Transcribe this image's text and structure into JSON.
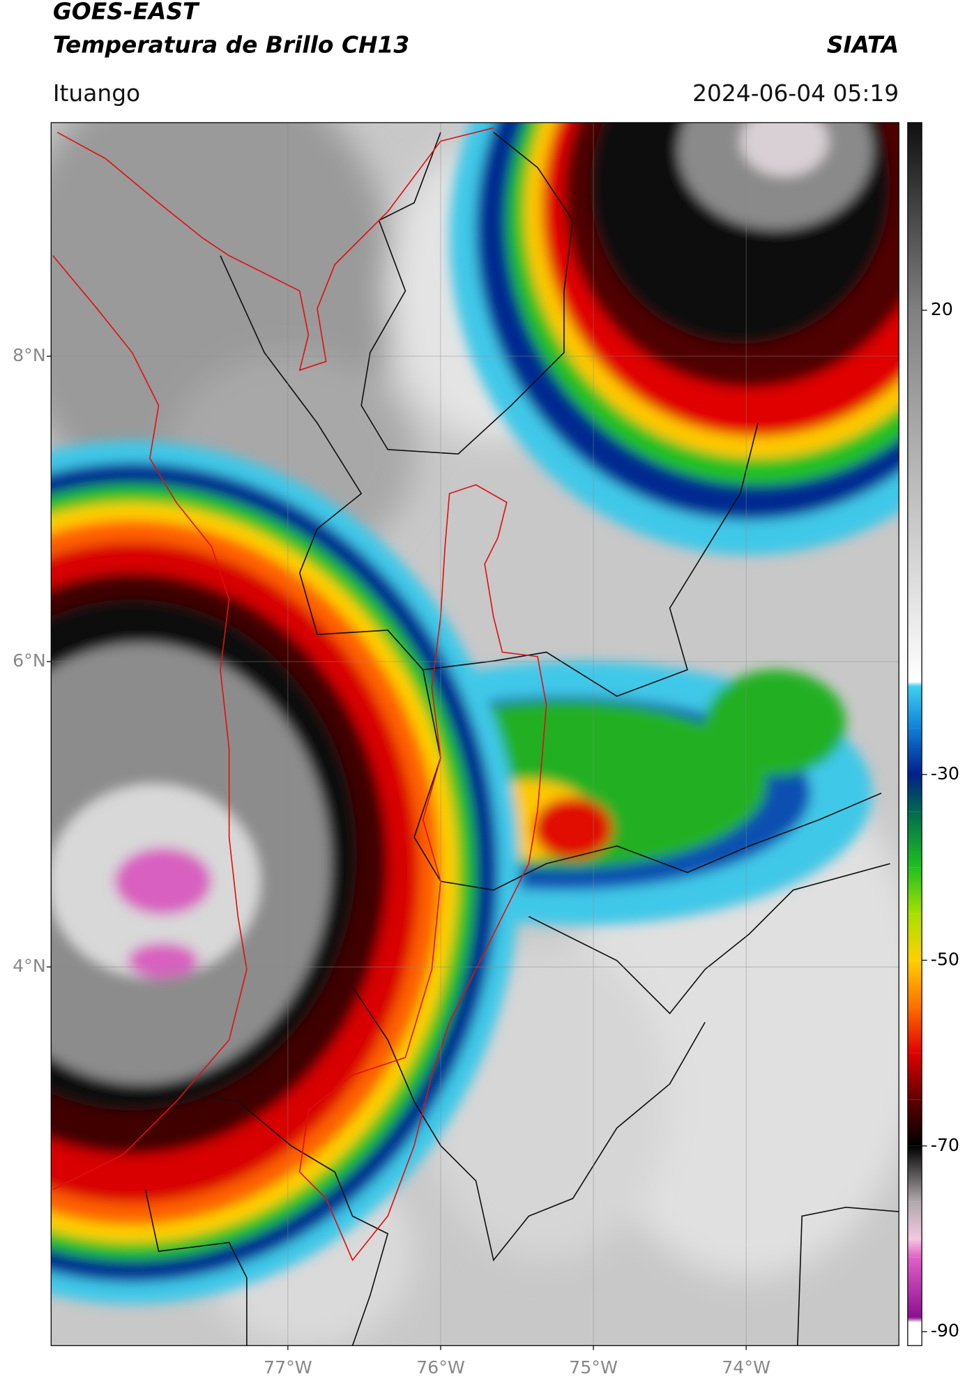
{
  "header": {
    "satellite": "GOES-EAST",
    "product": "Temperatura de Brillo CH13",
    "source": "SIATA",
    "location": "Ituango",
    "datetime": "2024-06-04 05:19"
  },
  "chart_data": {
    "type": "map",
    "xlim": [
      -78.55,
      -73.0
    ],
    "ylim": [
      1.52,
      9.53
    ],
    "xticks": [
      {
        "value": -77,
        "label": "77°W"
      },
      {
        "value": -76,
        "label": "76°W"
      },
      {
        "value": -75,
        "label": "75°W"
      },
      {
        "value": -74,
        "label": "74°W"
      }
    ],
    "yticks": [
      {
        "value": 4,
        "label": "4°N"
      },
      {
        "value": 6,
        "label": "6°N"
      },
      {
        "value": 8,
        "label": "8°N"
      }
    ],
    "grid": true,
    "colorbar": {
      "clim": [
        -91.5,
        40.2
      ],
      "ticks": [
        -90,
        -70,
        -50,
        -30,
        20
      ],
      "stops": [
        {
          "value": -91.5,
          "color": "#ffffff"
        },
        {
          "value": -89,
          "color": "#ffffff"
        },
        {
          "value": -88.5,
          "color": "#8a1090"
        },
        {
          "value": -82,
          "color": "#e060c8"
        },
        {
          "value": -80,
          "color": "#f4c8e0"
        },
        {
          "value": -76,
          "color": "#b0a8ac"
        },
        {
          "value": -70,
          "color": "#000000"
        },
        {
          "value": -65,
          "color": "#600000"
        },
        {
          "value": -60,
          "color": "#e00000"
        },
        {
          "value": -55,
          "color": "#ff7000"
        },
        {
          "value": -50,
          "color": "#ffd000"
        },
        {
          "value": -45,
          "color": "#a8e000"
        },
        {
          "value": -40,
          "color": "#20c020"
        },
        {
          "value": -34,
          "color": "#006a50"
        },
        {
          "value": -30,
          "color": "#00208a"
        },
        {
          "value": -25,
          "color": "#1080d8"
        },
        {
          "value": -20.5,
          "color": "#40d0f0"
        },
        {
          "value": -20,
          "color": "#ffffff"
        },
        {
          "value": 20,
          "color": "#808080"
        },
        {
          "value": 40.2,
          "color": "#101010"
        }
      ]
    }
  }
}
